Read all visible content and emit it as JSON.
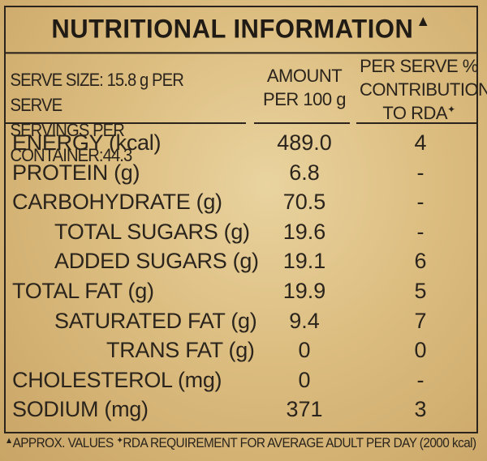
{
  "title": "NUTRITIONAL INFORMATION",
  "marks": {
    "approx": "▲",
    "rda": "✦"
  },
  "header": {
    "serve_size": "SERVE SIZE: 15.8 g PER SERVE",
    "servings": "SERVINGS PER CONTAINER:44.3",
    "amount_line1": "AMOUNT",
    "amount_line2": "PER 100 g",
    "rda_line1": "PER SERVE %",
    "rda_line2": "CONTRIBUTION",
    "rda_line3": "TO RDA"
  },
  "rows": [
    {
      "name": "ENERGY (kcal)",
      "amount": "489.0",
      "rda": "4"
    },
    {
      "name": "PROTEIN (g)",
      "amount": "6.8",
      "rda": "-"
    },
    {
      "name": "CARBOHYDRATE (g)",
      "amount": "70.5",
      "rda": "-"
    },
    {
      "name": "TOTAL SUGARS (g)",
      "amount": "19.6",
      "rda": "-"
    },
    {
      "name": "ADDED SUGARS (g)",
      "amount": "19.1",
      "rda": "6"
    },
    {
      "name": "TOTAL FAT (g)",
      "amount": "19.9",
      "rda": "5"
    },
    {
      "name": "SATURATED FAT (g)",
      "amount": "9.4",
      "rda": "7"
    },
    {
      "name": "TRANS FAT (g)",
      "amount": "0",
      "rda": "0"
    },
    {
      "name": "CHOLESTEROL (mg)",
      "amount": "0",
      "rda": "-"
    },
    {
      "name": "SODIUM (mg)",
      "amount": "371",
      "rda": "3"
    }
  ],
  "footer": {
    "approx": "APPROX. VALUES",
    "rda_note": "RDA REQUIREMENT FOR AVERAGE ADULT PER DAY (2000 kcal)"
  }
}
